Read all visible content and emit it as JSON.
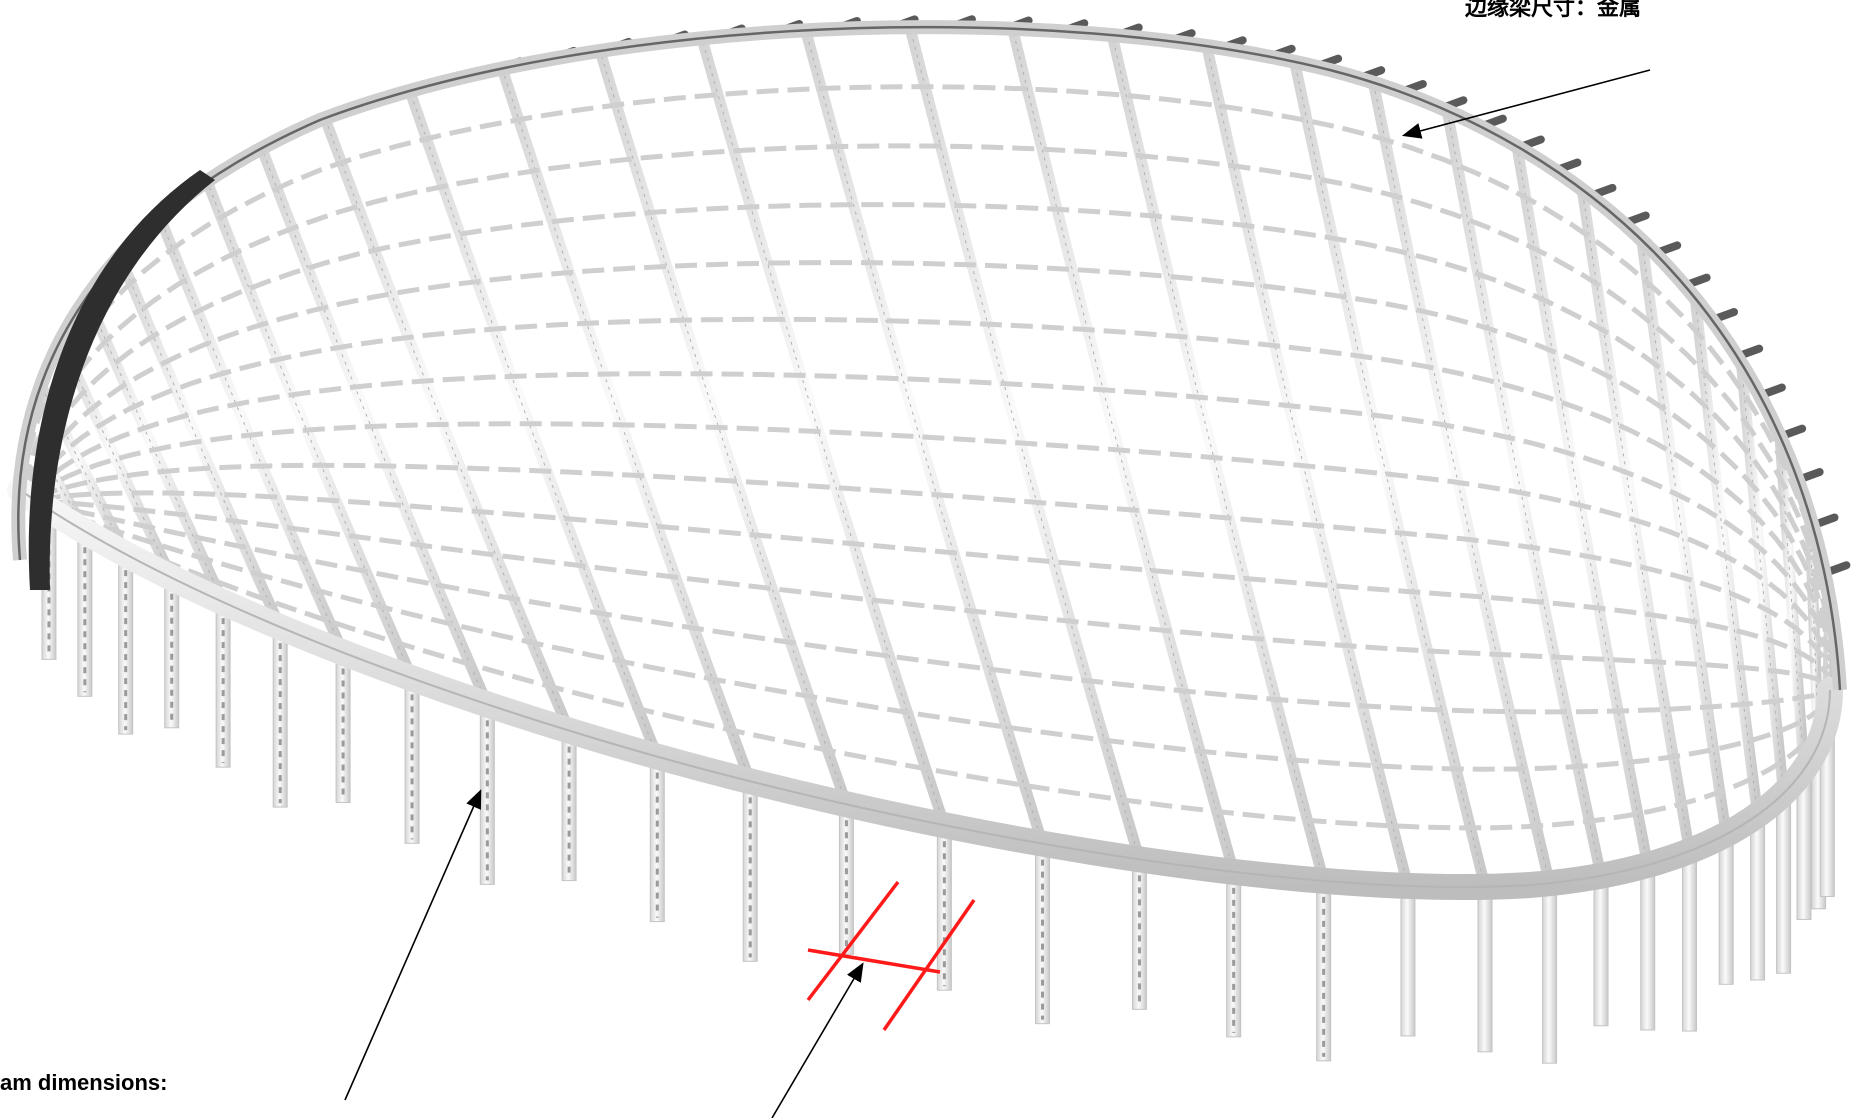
{
  "labels": {
    "beam_dimensions_heading": "am dimensions:",
    "top_annotation": "边缘梁尺寸：金属"
  },
  "colors": {
    "background": "#ffffff",
    "member_fill": "#eeeeee",
    "member_stroke": "#c9c9c9",
    "member_shadow": "#a9a9a9",
    "dark_member": "#333333",
    "edge_beam": "#e6e6e6",
    "section_marker": "#ff1a1a",
    "leader_line": "#000000"
  },
  "icons": {
    "section_marker": "red-cross-section-marker",
    "leader": "arrow-leader"
  }
}
